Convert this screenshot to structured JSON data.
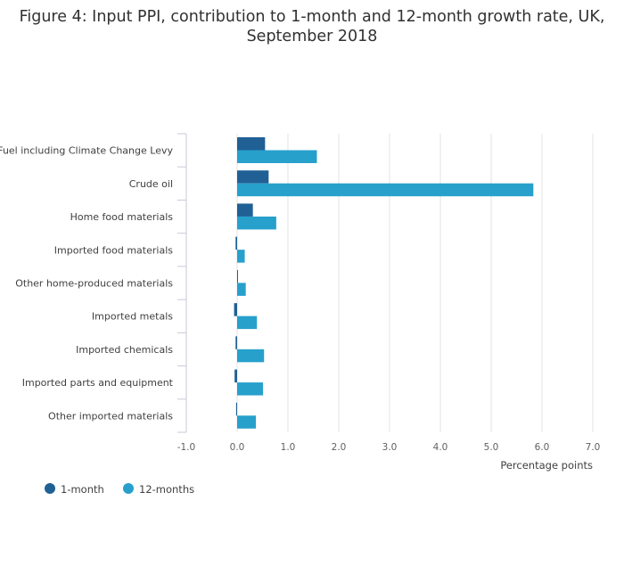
{
  "chart_data": {
    "type": "bar",
    "orientation": "horizontal",
    "title_lines": [
      "Figure 4: Input PPI, contribution to 1-month and 12-month growth rate, UK,",
      "September 2018"
    ],
    "categories": [
      "Fuel including Climate Change Levy",
      "Crude oil",
      "Home food materials",
      "Imported food materials",
      "Other home-produced materials",
      "Imported metals",
      "Imported chemicals",
      "Imported parts and equipment",
      "Other imported materials"
    ],
    "series": [
      {
        "name": "1-month",
        "color": "#206095",
        "values": [
          0.55,
          0.62,
          0.31,
          -0.03,
          0.0,
          -0.06,
          -0.03,
          -0.05,
          -0.02
        ]
      },
      {
        "name": "12-months",
        "color": "#27a0cc",
        "values": [
          1.57,
          5.83,
          0.77,
          0.15,
          0.17,
          0.39,
          0.53,
          0.51,
          0.37
        ]
      }
    ],
    "xlabel": "Percentage points",
    "xlim": [
      -1.0,
      7.0
    ],
    "xticks": [
      "-1.0",
      "0.0",
      "1.0",
      "2.0",
      "3.0",
      "4.0",
      "5.0",
      "6.0",
      "7.0"
    ],
    "grid": true,
    "legend_position": "bottom-left"
  },
  "colors": {
    "grid": "#e3e3e3",
    "axis": "#c8c8d8"
  }
}
